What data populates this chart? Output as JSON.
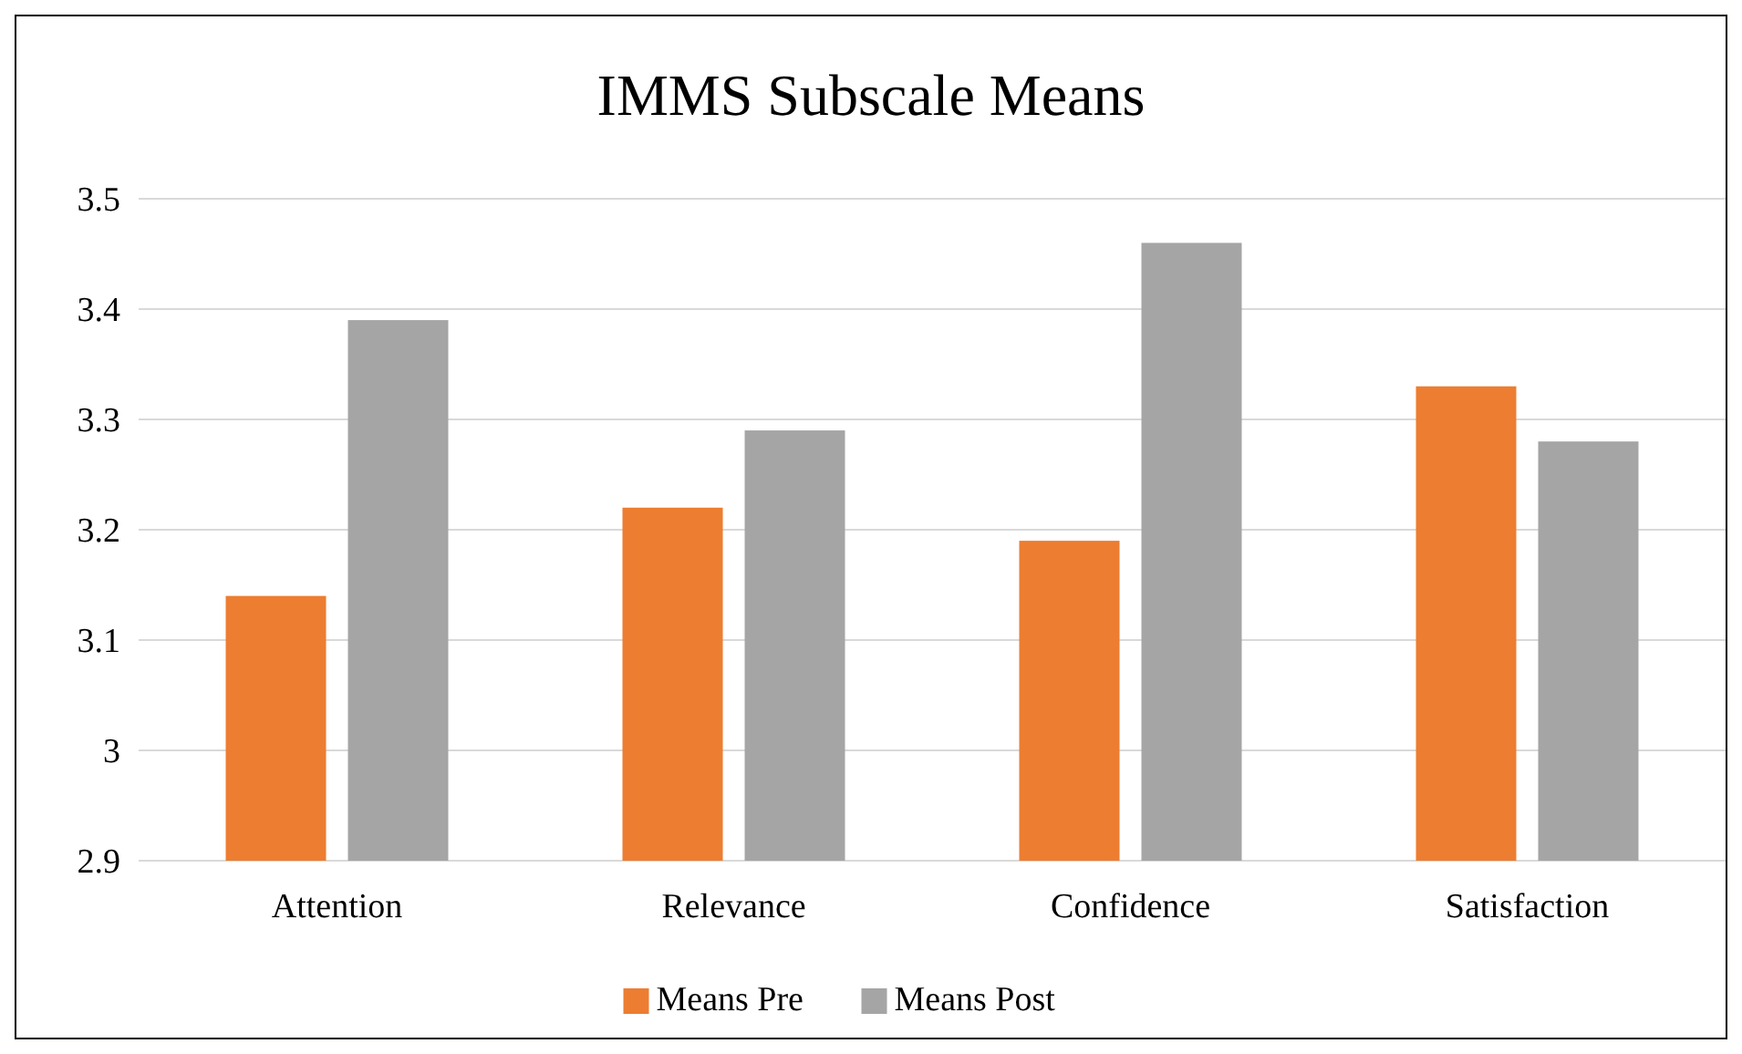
{
  "chart_data": {
    "type": "bar",
    "title": "IMMS Subscale Means",
    "categories": [
      "Attention",
      "Relevance",
      "Confidence",
      "Satisfaction"
    ],
    "series": [
      {
        "name": "Means Pre",
        "color": "#ed7d31",
        "values": [
          3.14,
          3.22,
          3.19,
          3.33
        ]
      },
      {
        "name": "Means Post",
        "color": "#a5a5a5",
        "values": [
          3.39,
          3.29,
          3.46,
          3.28
        ]
      }
    ],
    "ylim": [
      2.9,
      3.5
    ],
    "yticks": [
      2.9,
      3,
      3.1,
      3.2,
      3.3,
      3.4,
      3.5
    ],
    "grid": "y",
    "legend": "bottom"
  }
}
